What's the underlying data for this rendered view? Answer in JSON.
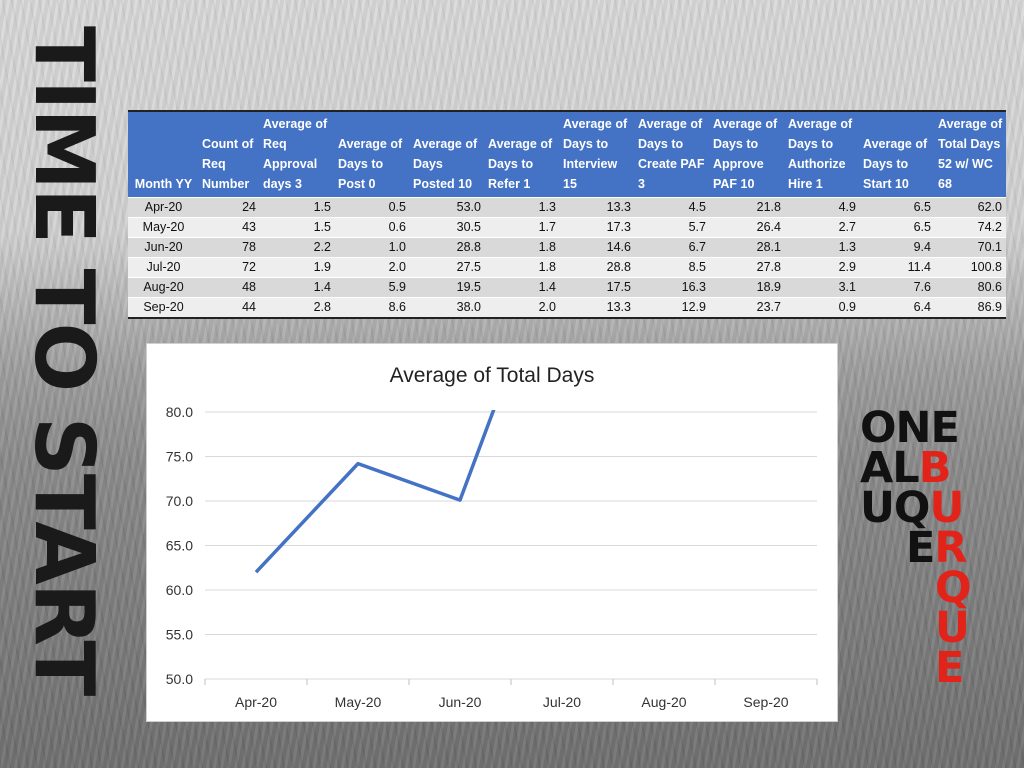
{
  "side_title": "TIME TO START",
  "logo": {
    "lines": [
      {
        "black": "ONE",
        "red": ""
      },
      {
        "black": "AL",
        "red": "B"
      },
      {
        "black": "UQ",
        "red": "U"
      },
      {
        "black": "E",
        "red": "R"
      },
      {
        "black": "",
        "red": "Q"
      },
      {
        "black": "",
        "red": "U"
      },
      {
        "black": "",
        "red": "E"
      }
    ],
    "colors": {
      "black": "#111111",
      "red": "#e2231a"
    }
  },
  "table": {
    "headers": [
      "Month YY",
      "Count of Req Number",
      "Average of Req Approval days 3",
      "Average of Days to Post 0",
      "Average of Days Posted 10",
      "Average of Days to Refer 1",
      "Average of Days to Interview 15",
      "Average of Days to Create PAF 3",
      "Average of Days to Approve PAF 10",
      "Average of Days to Authorize Hire 1",
      "Average of Days to Start 10",
      "Average of Total Days 52 w/ WC 68"
    ],
    "header_color": "#4472c4",
    "rows": [
      [
        "Apr-20",
        "24",
        "1.5",
        "0.5",
        "53.0",
        "1.3",
        "13.3",
        "4.5",
        "21.8",
        "4.9",
        "6.5",
        "62.0"
      ],
      [
        "May-20",
        "43",
        "1.5",
        "0.6",
        "30.5",
        "1.7",
        "17.3",
        "5.7",
        "26.4",
        "2.7",
        "6.5",
        "74.2"
      ],
      [
        "Jun-20",
        "78",
        "2.2",
        "1.0",
        "28.8",
        "1.8",
        "14.6",
        "6.7",
        "28.1",
        "1.3",
        "9.4",
        "70.1"
      ],
      [
        "Jul-20",
        "72",
        "1.9",
        "2.0",
        "27.5",
        "1.8",
        "28.8",
        "8.5",
        "27.8",
        "2.9",
        "11.4",
        "100.8"
      ],
      [
        "Aug-20",
        "48",
        "1.4",
        "5.9",
        "19.5",
        "1.4",
        "17.5",
        "16.3",
        "18.9",
        "3.1",
        "7.6",
        "80.6"
      ],
      [
        "Sep-20",
        "44",
        "2.8",
        "8.6",
        "38.0",
        "2.0",
        "13.3",
        "12.9",
        "23.7",
        "0.9",
        "6.4",
        "86.9"
      ]
    ]
  },
  "chart_data": {
    "type": "line",
    "title": "Average of Total Days",
    "categories": [
      "Apr-20",
      "May-20",
      "Jun-20",
      "Jul-20",
      "Aug-20",
      "Sep-20"
    ],
    "series": [
      {
        "values": [
          62.0,
          74.2,
          70.1,
          100.8,
          80.6,
          86.9
        ],
        "color": "#4472c4"
      }
    ],
    "ylim": [
      50,
      80
    ],
    "yticks": [
      "50.0",
      "55.0",
      "60.0",
      "65.0",
      "70.0",
      "75.0",
      "80.0"
    ],
    "grid": true,
    "legend": "none",
    "xlabel": "",
    "ylabel": ""
  }
}
